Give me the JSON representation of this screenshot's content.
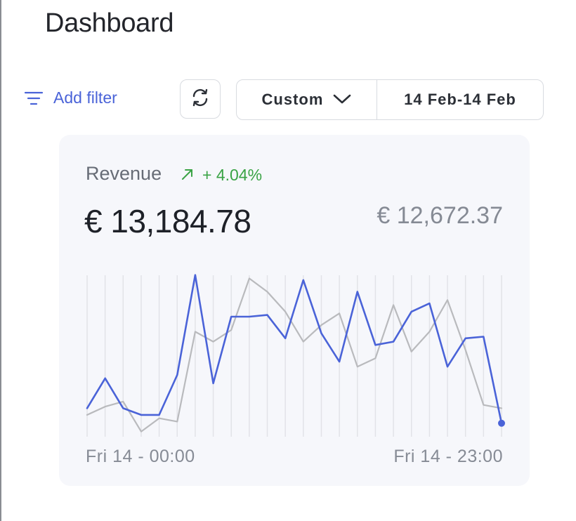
{
  "header": {
    "title": "Dashboard"
  },
  "toolbar": {
    "add_filter_label": "Add filter",
    "refresh_icon": "refresh-icon",
    "range_select_value": "Custom",
    "date_range": "14 Feb-14 Feb"
  },
  "metric": {
    "label": "Revenue",
    "change": "+ 4.04%",
    "change_icon": "arrow-up-right-icon",
    "current_value": "€ 13,184.78",
    "previous_value": "€ 12,672.37"
  },
  "colors": {
    "accent": "#4a63d8",
    "positive": "#3aa345",
    "comparison_series": "#b9babd",
    "card_background": "#f6f7fb"
  },
  "chart_data": {
    "type": "line",
    "x": [
      "00:00",
      "01:00",
      "02:00",
      "03:00",
      "04:00",
      "05:00",
      "06:00",
      "07:00",
      "08:00",
      "09:00",
      "10:00",
      "11:00",
      "12:00",
      "13:00",
      "14:00",
      "15:00",
      "16:00",
      "17:00",
      "18:00",
      "19:00",
      "20:00",
      "21:00",
      "22:00",
      "23:00"
    ],
    "x_tick_labels": [
      "Fri 14 - 00:00",
      "Fri 14 - 23:00"
    ],
    "series": [
      {
        "role": "current",
        "color": "#4a63d8",
        "values": [
          10,
          28,
          10,
          6,
          6,
          30,
          90,
          25,
          65,
          65,
          66,
          52,
          87,
          55,
          38,
          80,
          48,
          50,
          68,
          73,
          35,
          52,
          53,
          1
        ]
      },
      {
        "role": "previous",
        "color": "#b9babd",
        "values": [
          6,
          11,
          14,
          -4,
          4,
          2,
          56,
          50,
          57,
          88,
          80,
          68,
          50,
          60,
          67,
          35,
          40,
          72,
          44,
          56,
          75,
          45,
          12,
          10
        ]
      }
    ],
    "ylim": [
      -5,
      92
    ],
    "grid": "vertical",
    "end_marker": true
  }
}
